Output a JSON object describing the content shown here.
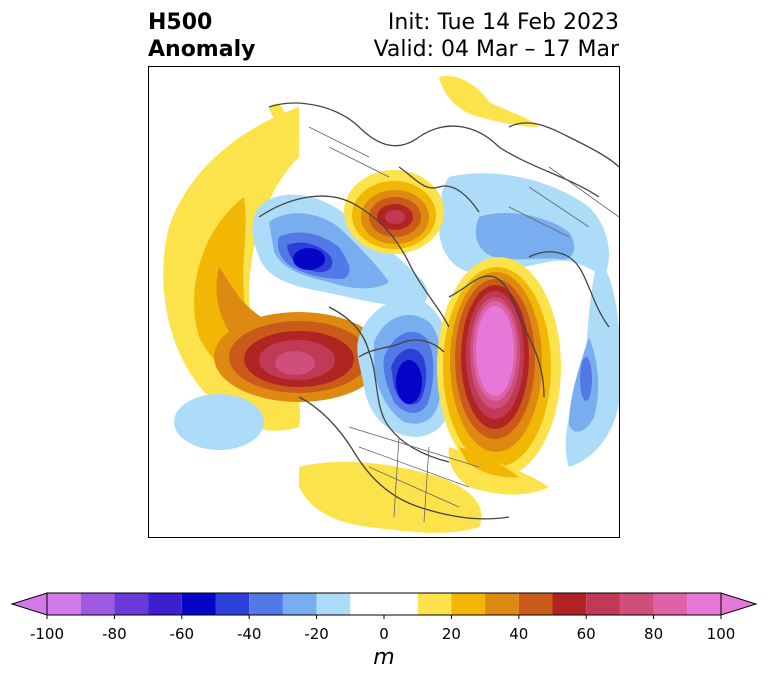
{
  "title": {
    "line1": "H500",
    "line2": "Anomaly",
    "init": "Init: Tue 14 Feb 2023",
    "valid": "Valid: 04 Mar – 17 Mar"
  },
  "colorbar": {
    "unit": "m",
    "ticks": [
      -100,
      -80,
      -60,
      -40,
      -20,
      0,
      20,
      40,
      60,
      80,
      100
    ],
    "levels": [
      -100,
      -90,
      -80,
      -70,
      -60,
      -50,
      -40,
      -30,
      -20,
      -10,
      10,
      20,
      30,
      40,
      50,
      60,
      70,
      80,
      90,
      100
    ],
    "colors": [
      "#d27ae8",
      "#9e5ae0",
      "#6a3ad8",
      "#3d1fd0",
      "#0505c8",
      "#2c3fd8",
      "#5279e6",
      "#78aef0",
      "#acdcf8",
      "#ffffff",
      "#fde34b",
      "#f2b705",
      "#de8a12",
      "#c95a19",
      "#b02524",
      "#c03a56",
      "#cf4e7c",
      "#dd62a8",
      "#e778d8"
    ],
    "extend_low_color": "#d27ae8",
    "extend_high_color": "#e778d8"
  },
  "map": {
    "projection": "north-polar-stereographic"
  }
}
